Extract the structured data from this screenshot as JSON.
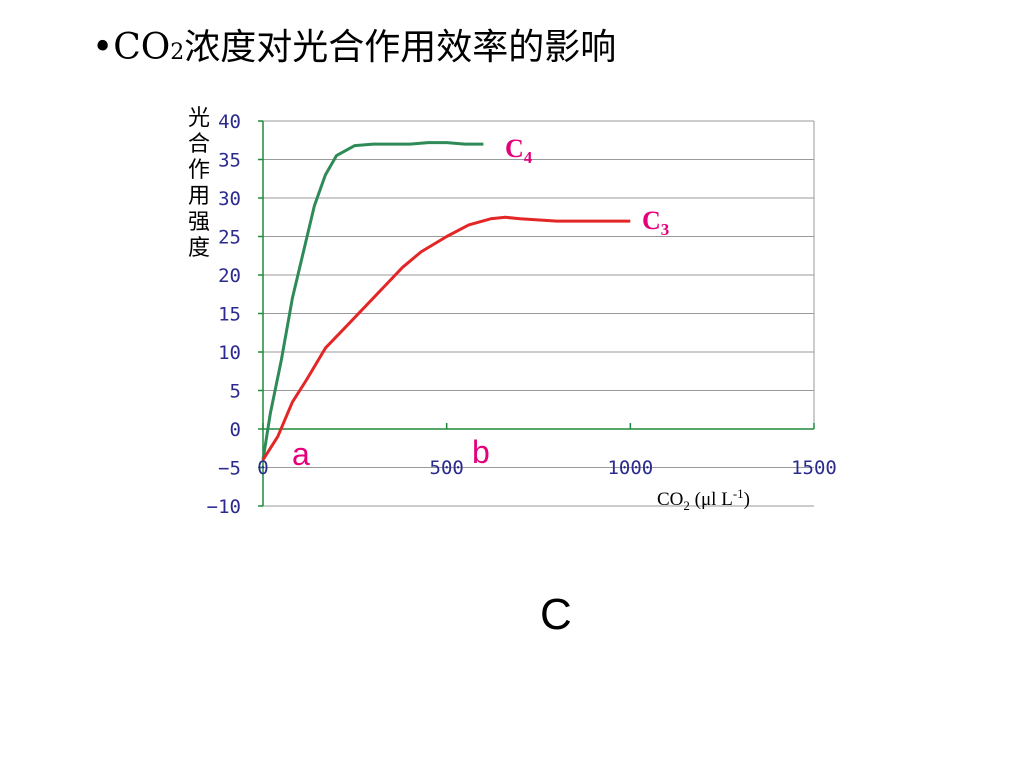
{
  "title": {
    "bullet": "•",
    "prefix": "CO",
    "sub": "2",
    "suffix": "浓度对光合作用效率的影响"
  },
  "answer": "C",
  "chart_data": {
    "type": "line",
    "ylabel": "光合作用强度",
    "xlabel": "CO2 (μl L-1)",
    "xlim": [
      0,
      1500
    ],
    "ylim": [
      -10,
      40
    ],
    "xticks": [
      "0",
      "500",
      "1000",
      "1500"
    ],
    "xtick_values": [
      0,
      500,
      1000,
      1500
    ],
    "yticks": [
      "40",
      "35",
      "30",
      "25",
      "20",
      "15",
      "10",
      "5",
      "0",
      "−5",
      "−10"
    ],
    "ytick_values": [
      40,
      35,
      30,
      25,
      20,
      15,
      10,
      5,
      0,
      -5,
      -10
    ],
    "grid": true,
    "series": [
      {
        "name": "C4",
        "color": "#2e8b57",
        "x": [
          0,
          20,
          50,
          80,
          110,
          140,
          170,
          200,
          250,
          300,
          400,
          450,
          500,
          550,
          600
        ],
        "y": [
          -4,
          2,
          9,
          17,
          23,
          29,
          33,
          35.5,
          36.8,
          37,
          37,
          37.2,
          37.2,
          37,
          37
        ]
      },
      {
        "name": "C3",
        "color": "#e32626",
        "x": [
          0,
          40,
          80,
          120,
          170,
          220,
          280,
          330,
          380,
          430,
          500,
          560,
          620,
          660,
          700,
          800,
          900,
          1000
        ],
        "y": [
          -4,
          -1,
          3.5,
          6.5,
          10.5,
          13,
          16,
          18.5,
          21,
          23,
          25,
          26.5,
          27.3,
          27.5,
          27.3,
          27,
          27,
          27
        ]
      }
    ],
    "annotations": [
      {
        "text": "a",
        "x": 0
      },
      {
        "text": "b",
        "x": 500
      }
    ],
    "curve_labels": [
      {
        "base": "C",
        "sub": "4"
      },
      {
        "base": "C",
        "sub": "3"
      }
    ]
  }
}
